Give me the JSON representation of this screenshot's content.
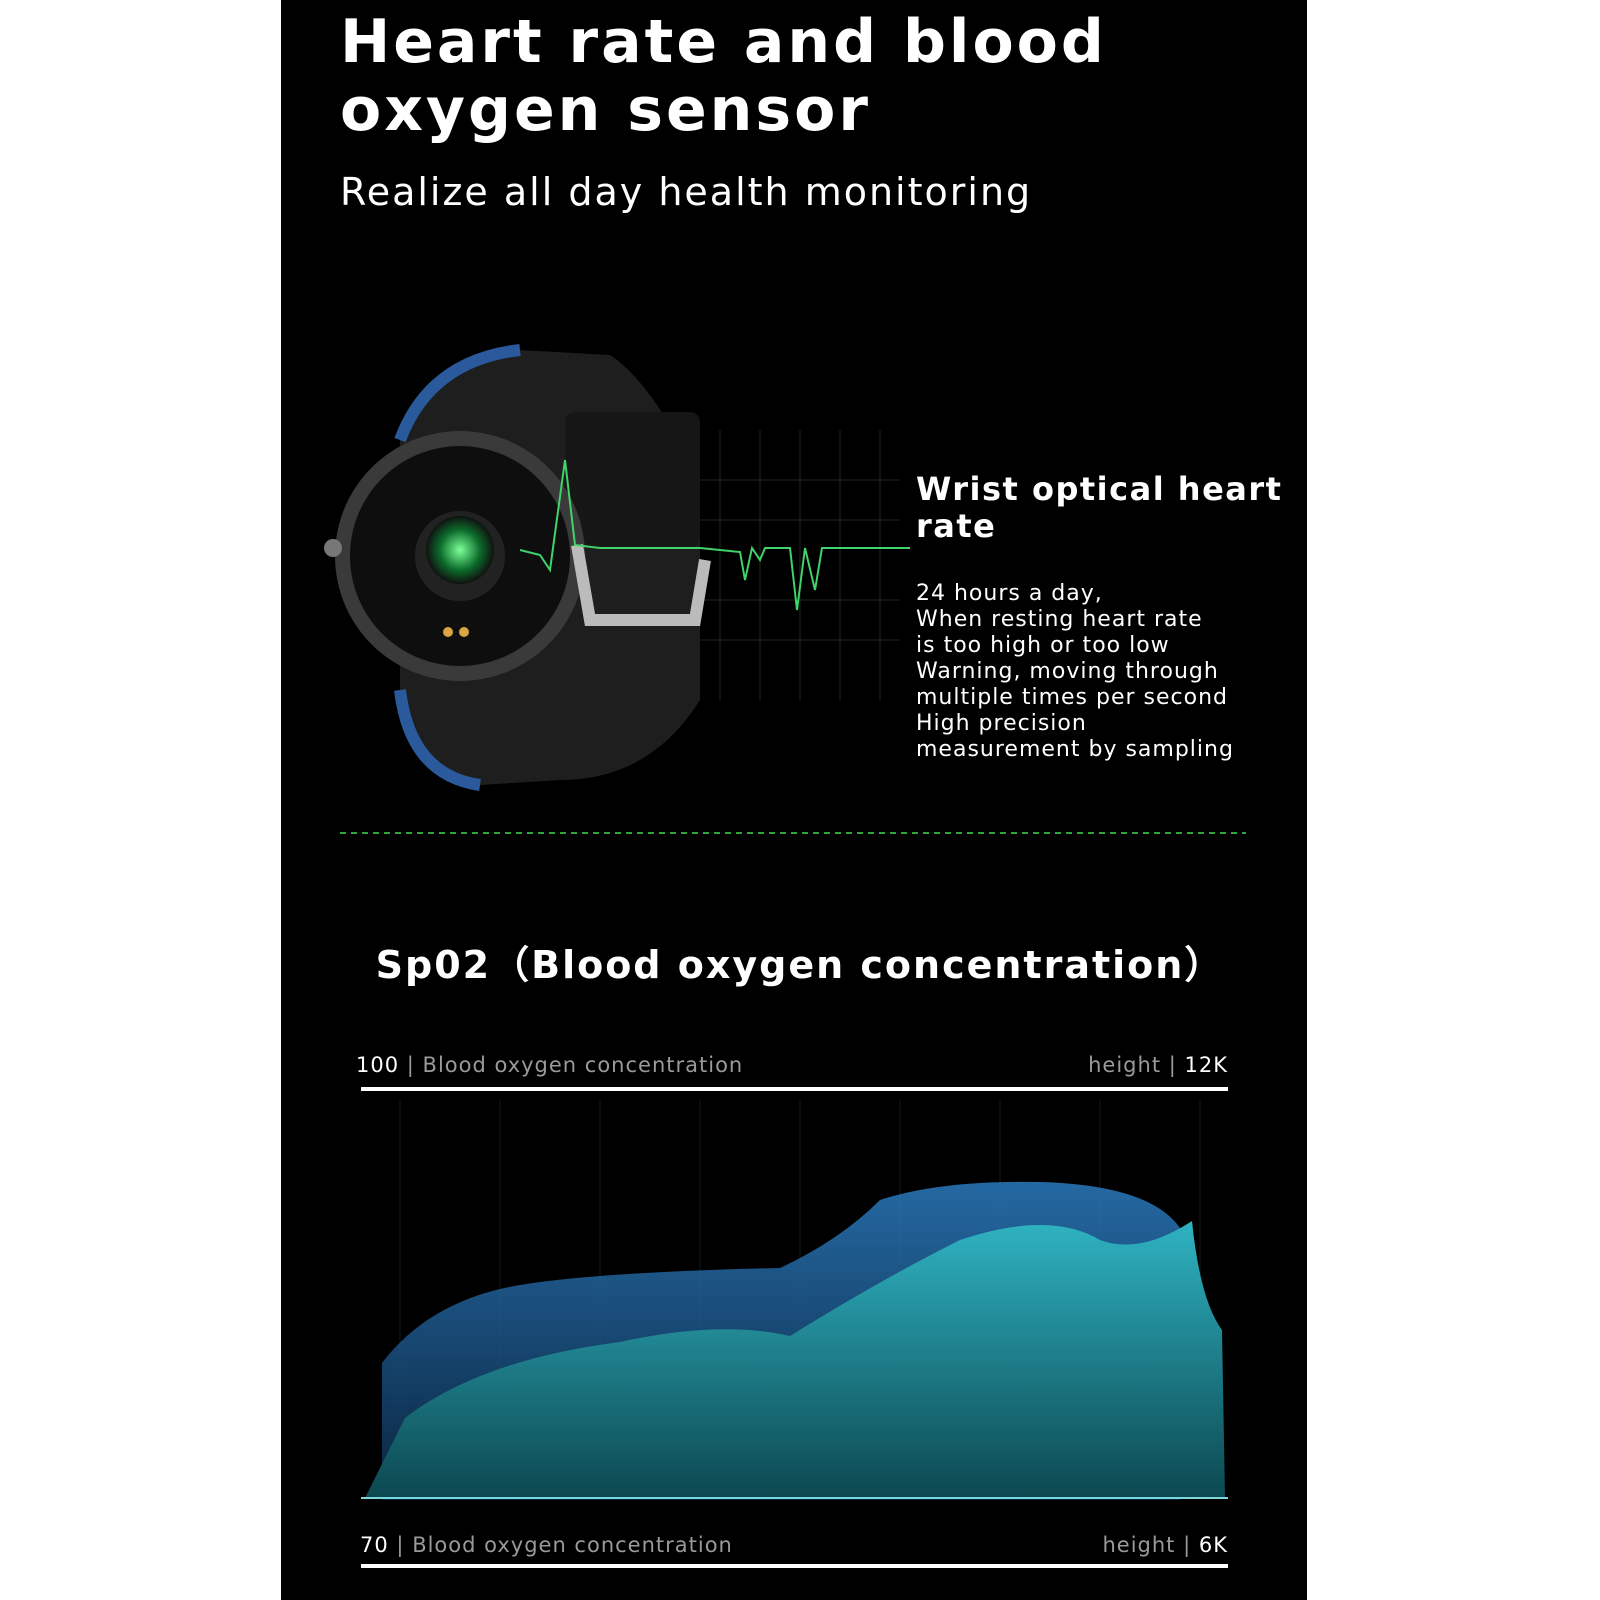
{
  "header": {
    "title_line1": "Heart rate and blood",
    "title_line2": "oxygen sensor",
    "subtitle": "Realize all day health monitoring"
  },
  "feature": {
    "title_line1": "Wrist optical heart",
    "title_line2": "rate",
    "lines": [
      "24 hours a day,",
      "When resting heart rate",
      "is too high or too low",
      "Warning, moving through",
      "multiple times per second",
      "High precision",
      "measurement by sampling"
    ]
  },
  "spo2": {
    "title": "Sp02（Blood oxygen concentration）",
    "top_left": {
      "value": "100",
      "separator": "|",
      "label": "Blood oxygen concentration"
    },
    "top_right": {
      "label": "height",
      "separator": "|",
      "value": "12K"
    },
    "bottom_left": {
      "value": "70",
      "separator": "|",
      "label": "Blood oxygen concentration"
    },
    "bottom_right": {
      "label": "height",
      "separator": "|",
      "value": "6K"
    }
  }
}
